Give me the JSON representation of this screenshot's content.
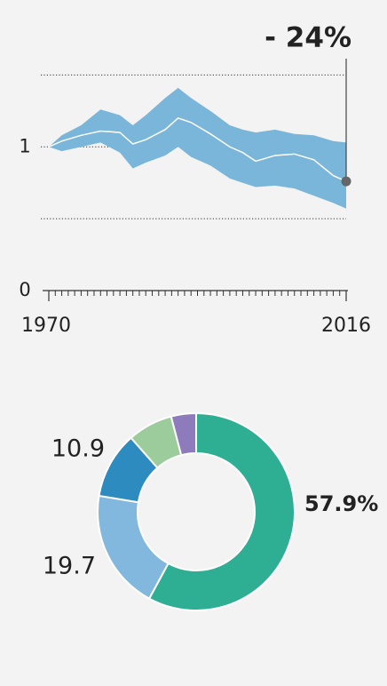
{
  "chart_data": [
    {
      "type": "band-line",
      "annotation": "- 24%",
      "x": [
        1970,
        1972,
        1975,
        1978,
        1981,
        1983,
        1985,
        1988,
        1990,
        1992,
        1995,
        1998,
        2000,
        2002,
        2005,
        2008,
        2011,
        2014,
        2016
      ],
      "values": [
        1.0,
        1.04,
        1.08,
        1.11,
        1.1,
        1.02,
        1.05,
        1.12,
        1.2,
        1.17,
        1.09,
        1.0,
        0.96,
        0.9,
        0.94,
        0.95,
        0.91,
        0.8,
        0.76
      ],
      "upper": [
        1.0,
        1.08,
        1.15,
        1.26,
        1.22,
        1.15,
        1.22,
        1.34,
        1.41,
        1.34,
        1.25,
        1.15,
        1.12,
        1.1,
        1.12,
        1.09,
        1.08,
        1.04,
        1.03
      ],
      "lower": [
        1.0,
        0.97,
        1.0,
        1.03,
        0.96,
        0.85,
        0.89,
        0.94,
        1.0,
        0.93,
        0.87,
        0.78,
        0.75,
        0.72,
        0.73,
        0.71,
        0.66,
        0.61,
        0.57
      ],
      "color": "#ffffff",
      "band_color": "#7ab5da",
      "marker_color": "#666666",
      "xlim": [
        1970,
        2016
      ],
      "xticks": [
        1970,
        2016
      ],
      "xminorticks": [
        1971,
        1972,
        1973,
        1974,
        1975,
        1976,
        1977,
        1978,
        1979,
        1980,
        1981,
        1982,
        1983,
        1984,
        1985,
        1986,
        1987,
        1988,
        1989,
        1990,
        1991,
        1992,
        1993,
        1994,
        1995,
        1996,
        1997,
        1998,
        1999,
        2000,
        2001,
        2002,
        2003,
        2004,
        2005,
        2006,
        2007,
        2008,
        2009,
        2010,
        2011,
        2012,
        2013,
        2014,
        2015
      ],
      "ylim": [
        0,
        1.6
      ],
      "yticks": [
        0,
        1
      ],
      "gridlines": [
        0.5,
        1,
        1.5
      ]
    },
    {
      "type": "donut",
      "values": [
        57.9,
        19.7,
        10.9,
        7.4,
        4.1
      ],
      "value_labels": [
        "57.9%",
        "19.7",
        "10.9",
        null,
        null
      ],
      "colors": [
        "#2eae93",
        "#82b8dd",
        "#2d8bbf",
        "#9ccb9c",
        "#8e7bbb"
      ]
    }
  ]
}
